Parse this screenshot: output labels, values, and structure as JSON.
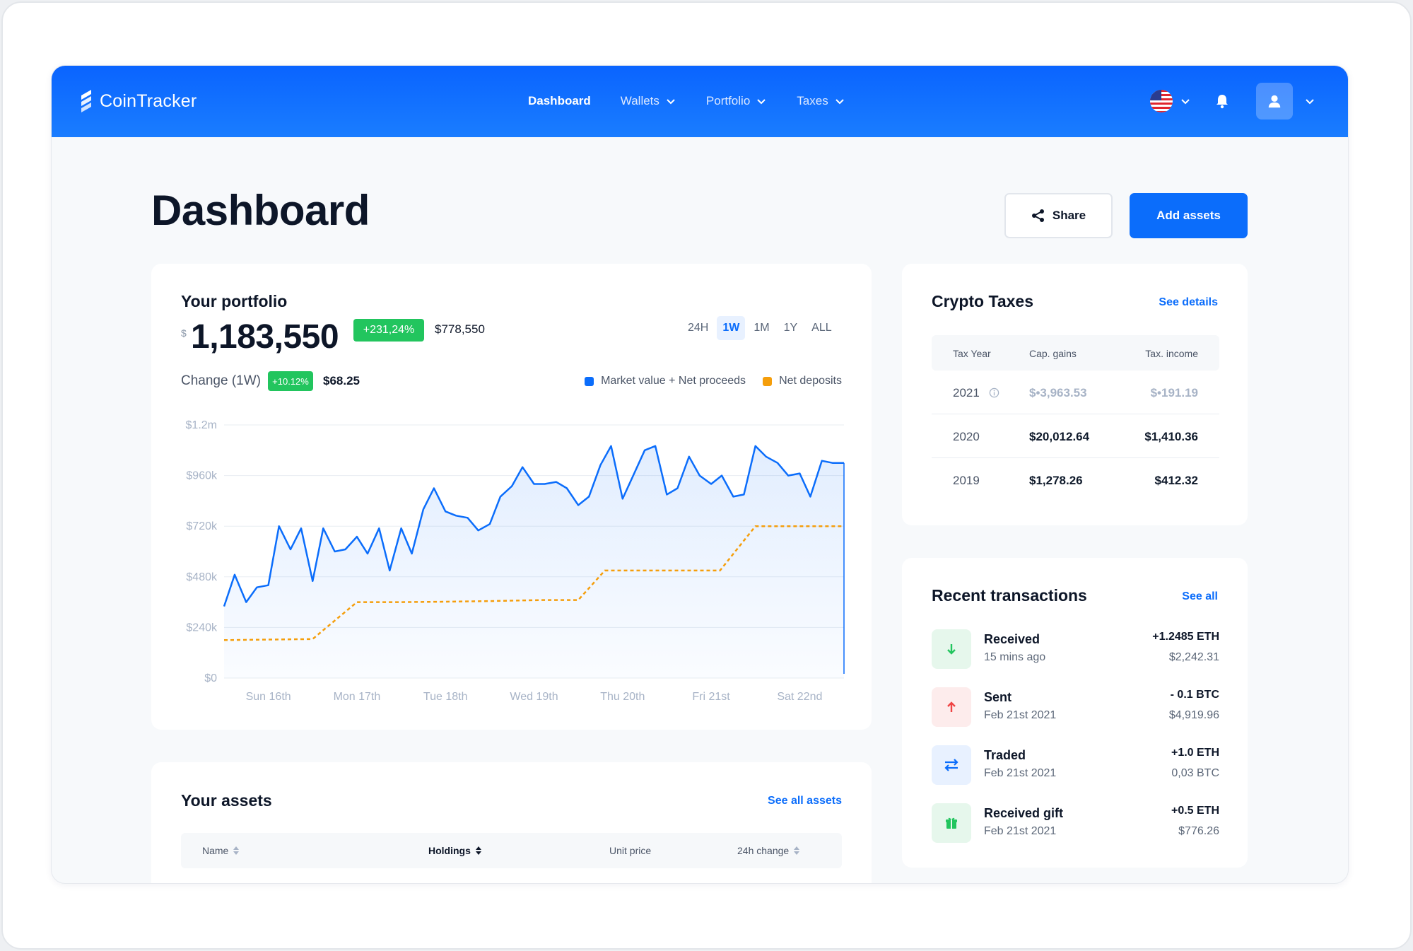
{
  "app": {
    "brand": "CoinTracker"
  },
  "nav": {
    "items": [
      {
        "label": "Dashboard",
        "active": true
      },
      {
        "label": "Wallets",
        "dropdown": true
      },
      {
        "label": "Portfolio",
        "dropdown": true
      },
      {
        "label": "Taxes",
        "dropdown": true
      }
    ]
  },
  "header": {
    "flag_icon": "us-flag-icon",
    "bell_icon": "bell-icon",
    "user_icon": "user-icon"
  },
  "page": {
    "title": "Dashboard",
    "share_label": "Share",
    "add_label": "Add assets"
  },
  "colors": {
    "primary": "#0b6dfb",
    "green": "#22c55e",
    "orange": "#f59e0b",
    "red": "#ef4444"
  },
  "portfolio": {
    "title": "Your portfolio",
    "currency": "$",
    "value": "1,183,550",
    "change_pct": "+231,24%",
    "change_abs": "$778,550",
    "ranges": [
      "24H",
      "1W",
      "1M",
      "1Y",
      "ALL"
    ],
    "active_range": "1W",
    "change_label": "Change (1W)",
    "change_week_pct": "+10.12%",
    "change_week_abs": "$68.25",
    "legend": [
      {
        "label": "Market value + Net proceeds",
        "color": "#0b6dfb"
      },
      {
        "label": "Net deposits",
        "color": "#f59e0b"
      }
    ]
  },
  "chart_data": {
    "type": "line",
    "y_ticks": [
      "$1.2m",
      "$960k",
      "$720k",
      "$480k",
      "$240k",
      "$0"
    ],
    "ylim": [
      0,
      1200000
    ],
    "x_ticks": [
      "Sun 16th",
      "Mon 17th",
      "Tue 18th",
      "Wed 19th",
      "Thu 20th",
      "Fri 21st",
      "Sat 22nd"
    ],
    "x_range": [
      0,
      7
    ],
    "series": [
      {
        "name": "Market value + Net proceeds",
        "color": "#0b6dfb",
        "x": [
          0,
          0.12,
          0.25,
          0.37,
          0.5,
          0.62,
          0.75,
          0.87,
          1.0,
          1.12,
          1.25,
          1.37,
          1.5,
          1.62,
          1.75,
          1.87,
          2.0,
          2.12,
          2.25,
          2.37,
          2.5,
          2.62,
          2.75,
          2.87,
          3.0,
          3.12,
          3.25,
          3.37,
          3.5,
          3.62,
          3.75,
          3.87,
          4.0,
          4.12,
          4.25,
          4.37,
          4.5,
          4.62,
          4.75,
          4.87,
          5.0,
          5.12,
          5.25,
          5.37,
          5.5,
          5.62,
          5.75,
          5.87,
          6.0,
          6.12,
          6.25,
          6.37,
          6.5,
          6.62,
          6.75,
          6.87,
          7.0
        ],
        "values": [
          340000,
          490000,
          360000,
          430000,
          440000,
          720000,
          610000,
          710000,
          460000,
          710000,
          600000,
          610000,
          670000,
          590000,
          710000,
          510000,
          710000,
          590000,
          800000,
          900000,
          790000,
          770000,
          760000,
          700000,
          730000,
          860000,
          910000,
          1000000,
          920000,
          920000,
          930000,
          900000,
          820000,
          860000,
          1010000,
          1100000,
          850000,
          960000,
          1080000,
          1100000,
          870000,
          900000,
          1050000,
          960000,
          920000,
          960000,
          860000,
          870000,
          1100000,
          1050000,
          1020000,
          960000,
          970000,
          860000,
          1030000,
          1020000,
          1020000
        ]
      },
      {
        "name": "Net deposits",
        "color": "#f59e0b",
        "x": [
          0,
          1.0,
          1.5,
          2.0,
          2.5,
          3.0,
          3.6,
          4.0,
          4.3,
          5.0,
          5.6,
          6.0,
          7.0
        ],
        "values": [
          180000,
          185000,
          360000,
          360000,
          362000,
          365000,
          370000,
          370000,
          510000,
          510000,
          510000,
          720000,
          720000
        ]
      }
    ]
  },
  "assets": {
    "title": "Your assets",
    "see_all": "See all assets",
    "columns": [
      "Name",
      "Holdings",
      "Unit price",
      "24h change"
    ]
  },
  "taxes": {
    "title": "Crypto Taxes",
    "see_details": "See details",
    "columns": [
      "Tax Year",
      "Cap. gains",
      "Tax. income"
    ],
    "rows": [
      {
        "year": "2021",
        "gains": "$•3,963.53",
        "income": "$•191.19",
        "pending": true
      },
      {
        "year": "2020",
        "gains": "$20,012.64",
        "income": "$1,410.36"
      },
      {
        "year": "2019",
        "gains": "$1,278.26",
        "income": "$412.32"
      }
    ]
  },
  "transactions": {
    "title": "Recent transactions",
    "see_all": "See all",
    "items": [
      {
        "type": "Received",
        "time": "15 mins ago",
        "amount": "+1.2485 ETH",
        "value": "$2,242.31",
        "icon": "arrow-down-icon"
      },
      {
        "type": "Sent",
        "time": "Feb 21st 2021",
        "amount": "- 0.1 BTC",
        "value": "$4,919.96",
        "icon": "arrow-up-icon"
      },
      {
        "type": "Traded",
        "time": "Feb 21st 2021",
        "amount": "+1.0 ETH",
        "value": "0,03 BTC",
        "icon": "swap-icon"
      },
      {
        "type": "Received gift",
        "time": "Feb 21st 2021",
        "amount": "+0.5 ETH",
        "value": "$776.26",
        "icon": "gift-icon"
      }
    ]
  }
}
